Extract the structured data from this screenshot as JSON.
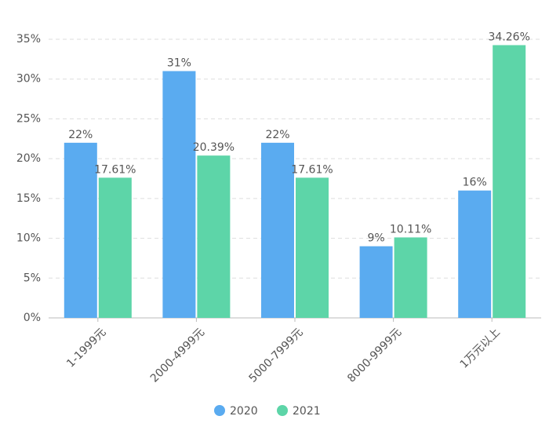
{
  "chart_data": {
    "type": "bar",
    "categories": [
      "1-1999元",
      "2000-4999元",
      "5000-7999元",
      "8000-9999元",
      "1万元以上"
    ],
    "series": [
      {
        "name": "2020",
        "color": "#5aabf0",
        "values": [
          22,
          31,
          22,
          9,
          16
        ],
        "value_labels": [
          "22%",
          "31%",
          "22%",
          "9%",
          "16%"
        ]
      },
      {
        "name": "2021",
        "color": "#5dd5a8",
        "values": [
          17.61,
          20.39,
          17.61,
          10.11,
          34.26
        ],
        "value_labels": [
          "17.61%",
          "20.39%",
          "17.61%",
          "10.11%",
          "34.26%"
        ]
      }
    ],
    "ylim": [
      0,
      35
    ],
    "yticks": [
      {
        "value": 0,
        "label": "0%"
      },
      {
        "value": 5,
        "label": "5%"
      },
      {
        "value": 10,
        "label": "10%"
      },
      {
        "value": 15,
        "label": "15%"
      },
      {
        "value": 20,
        "label": "20%"
      },
      {
        "value": 25,
        "label": "25%"
      },
      {
        "value": 30,
        "label": "30%"
      },
      {
        "value": 35,
        "label": "35%"
      }
    ],
    "grid": true,
    "legend": "bottom"
  }
}
